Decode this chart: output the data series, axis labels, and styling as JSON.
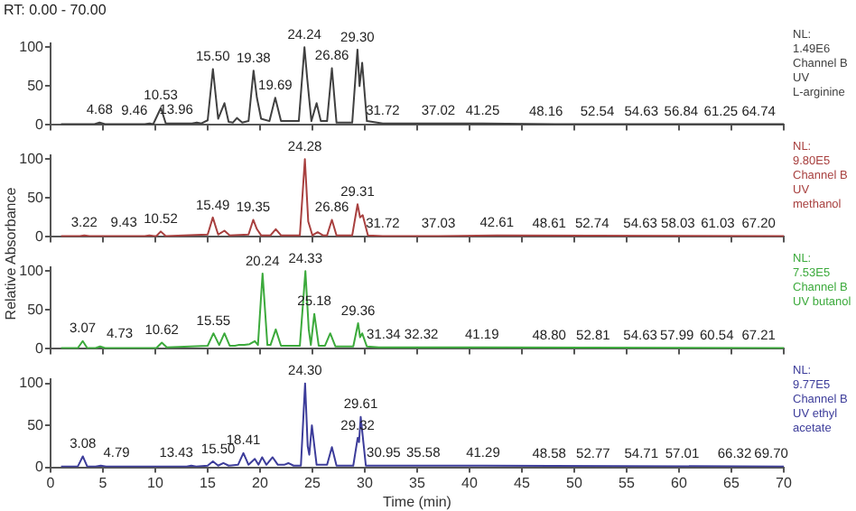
{
  "chart_data": [
    {
      "type": "line",
      "title": "RT: 0.00 - 70.00",
      "xlim": [
        0,
        70
      ],
      "xticks": [
        0,
        5,
        10,
        15,
        20,
        25,
        30,
        35,
        40,
        45,
        50,
        55,
        60,
        65,
        70
      ],
      "ylim": [
        0,
        105
      ],
      "yticks": [
        0,
        50,
        100
      ],
      "tick_labels": "y",
      "series": [
        {
          "color": "#404040",
          "x": [
            1,
            4.2,
            4.68,
            5.2,
            9.0,
            9.46,
            9.8,
            10.53,
            11.0,
            13.5,
            13.96,
            14.4,
            15.0,
            15.5,
            16.0,
            16.6,
            17.0,
            17.4,
            17.8,
            18.3,
            18.9,
            19.38,
            19.7,
            20.1,
            20.9,
            21.45,
            22.0,
            23.7,
            24.24,
            24.5,
            24.9,
            25.4,
            25.8,
            26.4,
            26.86,
            27.3,
            28.8,
            29.3,
            29.5,
            29.75,
            30.2,
            31.72,
            37.02,
            41.25,
            48.16,
            70
          ],
          "values": [
            1,
            1,
            3,
            1,
            1,
            2,
            1,
            22,
            2,
            2,
            3,
            2,
            6,
            72,
            8,
            28,
            4,
            3,
            9,
            3,
            5,
            70,
            35,
            8,
            5,
            35,
            5,
            5,
            100,
            60,
            5,
            28,
            5,
            5,
            73,
            3,
            3,
            97,
            50,
            80,
            5,
            2,
            2,
            2,
            1,
            1
          ]
        }
      ],
      "annotations": [
        {
          "text": "4.68",
          "x": 4.68,
          "y": 3
        },
        {
          "text": "9.46",
          "x": 8.0,
          "y": 2
        },
        {
          "text": "10.53",
          "x": 10.53,
          "y": 22
        },
        {
          "text": "13.96",
          "x": 12.0,
          "y": 3
        },
        {
          "text": "15.50",
          "x": 15.5,
          "y": 72
        },
        {
          "text": "19.38",
          "x": 19.38,
          "y": 70
        },
        {
          "text": "19.69",
          "x": 21.45,
          "y": 35
        },
        {
          "text": "24.24",
          "x": 24.24,
          "y": 100
        },
        {
          "text": "26.86",
          "x": 26.86,
          "y": 73
        },
        {
          "text": "29.30",
          "x": 29.3,
          "y": 97
        },
        {
          "text": "31.72",
          "x": 31.72,
          "y": 2
        },
        {
          "text": "37.02",
          "x": 37.02,
          "y": 2
        },
        {
          "text": "41.25",
          "x": 41.25,
          "y": 2
        },
        {
          "text": "48.16",
          "x": 47.3,
          "y": 1
        },
        {
          "text": "52.54",
          "x": 52.2,
          "y": 1
        },
        {
          "text": "54.63",
          "x": 56.4,
          "y": 1
        },
        {
          "text": "56.84",
          "x": 60.2,
          "y": 1
        },
        {
          "text": "61.25",
          "x": 64.0,
          "y": 1
        },
        {
          "text": "64.74",
          "x": 67.6,
          "y": 1
        },
        "NL:",
        "1.49E6",
        "Channel B",
        "UV",
        "L-arginine"
      ]
    },
    {
      "type": "line",
      "ylabel": "Relative Absorbance",
      "xlim": [
        0,
        70
      ],
      "xticks": [
        0,
        5,
        10,
        15,
        20,
        25,
        30,
        35,
        40,
        45,
        50,
        55,
        60,
        65,
        70
      ],
      "ylim": [
        0,
        105
      ],
      "yticks": [
        0,
        50,
        100
      ],
      "tick_labels": "y",
      "series": [
        {
          "color": "#a8403f",
          "x": [
            1,
            2.8,
            3.22,
            3.7,
            9.0,
            9.43,
            9.9,
            10.1,
            10.52,
            11.0,
            15.0,
            15.49,
            16.0,
            16.6,
            17.1,
            18.9,
            19.35,
            19.7,
            20.1,
            21.0,
            21.5,
            22.0,
            23.8,
            24.28,
            24.6,
            25.0,
            25.5,
            26.0,
            26.4,
            26.86,
            27.3,
            28.8,
            29.31,
            29.55,
            29.8,
            30.3,
            31.72,
            37.03,
            42.61,
            70
          ],
          "values": [
            1,
            1,
            2,
            1,
            1,
            2,
            1,
            1,
            7,
            1,
            3,
            25,
            3,
            8,
            2,
            3,
            22,
            10,
            2,
            2,
            10,
            2,
            2,
            100,
            20,
            2,
            6,
            2,
            2,
            22,
            2,
            2,
            42,
            25,
            28,
            2,
            1,
            1,
            2,
            1
          ]
        }
      ],
      "annotations": [
        {
          "text": "3.22",
          "x": 3.22,
          "y": 2
        },
        {
          "text": "9.43",
          "x": 7.0,
          "y": 2
        },
        {
          "text": "10.52",
          "x": 10.52,
          "y": 7
        },
        {
          "text": "15.49",
          "x": 15.49,
          "y": 25
        },
        {
          "text": "19.35",
          "x": 19.35,
          "y": 22
        },
        {
          "text": "24.28",
          "x": 24.28,
          "y": 100
        },
        {
          "text": "26.86",
          "x": 26.86,
          "y": 22
        },
        {
          "text": "29.31",
          "x": 29.31,
          "y": 42
        },
        {
          "text": "31.72",
          "x": 31.72,
          "y": 1
        },
        {
          "text": "37.03",
          "x": 37.03,
          "y": 1
        },
        {
          "text": "42.61",
          "x": 42.61,
          "y": 2
        },
        {
          "text": "48.61",
          "x": 47.6,
          "y": 1
        },
        {
          "text": "52.74",
          "x": 51.7,
          "y": 1
        },
        {
          "text": "54.63",
          "x": 56.3,
          "y": 1
        },
        {
          "text": "58.03",
          "x": 59.9,
          "y": 1
        },
        {
          "text": "61.03",
          "x": 63.7,
          "y": 1
        },
        {
          "text": "67.20",
          "x": 67.6,
          "y": 1
        },
        "NL:",
        "9.80E5",
        "Channel B",
        "UV methanol"
      ]
    },
    {
      "type": "line",
      "xlim": [
        0,
        70
      ],
      "xticks": [
        0,
        5,
        10,
        15,
        20,
        25,
        30,
        35,
        40,
        45,
        50,
        55,
        60,
        65,
        70
      ],
      "ylim": [
        0,
        105
      ],
      "yticks": [
        0,
        50,
        100
      ],
      "tick_labels": "y",
      "series": [
        {
          "color": "#3caa3c",
          "x": [
            1,
            2.6,
            3.07,
            3.5,
            4.3,
            4.73,
            5.2,
            10.1,
            10.62,
            11.1,
            15.0,
            15.55,
            16.1,
            16.6,
            17.1,
            17.6,
            18.0,
            18.5,
            19.0,
            19.5,
            19.8,
            20.24,
            20.7,
            21.0,
            21.5,
            22.0,
            23.8,
            24.33,
            24.65,
            24.85,
            25.18,
            25.6,
            26.2,
            26.7,
            27.2,
            28.9,
            29.36,
            29.55,
            29.75,
            30.2,
            31.34,
            32.32,
            41.19,
            70
          ],
          "values": [
            1,
            1,
            10,
            1,
            1,
            3,
            1,
            1,
            8,
            2,
            4,
            20,
            5,
            20,
            4,
            4,
            5,
            5,
            6,
            10,
            5,
            97,
            5,
            5,
            25,
            4,
            4,
            100,
            25,
            5,
            45,
            4,
            4,
            20,
            3,
            3,
            33,
            15,
            20,
            3,
            2,
            2,
            2,
            1
          ]
        }
      ],
      "annotations": [
        {
          "text": "3.07",
          "x": 3.07,
          "y": 10
        },
        {
          "text": "4.73",
          "x": 6.6,
          "y": 3
        },
        {
          "text": "10.62",
          "x": 10.62,
          "y": 8
        },
        {
          "text": "15.55",
          "x": 15.55,
          "y": 20
        },
        {
          "text": "20.24",
          "x": 20.24,
          "y": 97
        },
        {
          "text": "24.33",
          "x": 24.33,
          "y": 100
        },
        {
          "text": "25.18",
          "x": 25.18,
          "y": 45
        },
        {
          "text": "29.36",
          "x": 29.36,
          "y": 33
        },
        {
          "text": "31.34",
          "x": 31.8,
          "y": 2
        },
        {
          "text": "32.32",
          "x": 35.4,
          "y": 2
        },
        {
          "text": "41.19",
          "x": 41.19,
          "y": 2
        },
        {
          "text": "48.80",
          "x": 47.6,
          "y": 1
        },
        {
          "text": "52.81",
          "x": 51.8,
          "y": 1
        },
        {
          "text": "54.63",
          "x": 56.3,
          "y": 1
        },
        {
          "text": "57.99",
          "x": 59.8,
          "y": 1
        },
        {
          "text": "60.54",
          "x": 63.6,
          "y": 1
        },
        {
          "text": "67.21",
          "x": 67.6,
          "y": 1
        },
        "NL:",
        "7.53E5",
        "Channel B",
        "UV butanol"
      ]
    },
    {
      "type": "line",
      "xlabel": "Time (min)",
      "xlim": [
        0,
        70
      ],
      "xticks": [
        0,
        5,
        10,
        15,
        20,
        25,
        30,
        35,
        40,
        45,
        50,
        55,
        60,
        65,
        70
      ],
      "ylim": [
        0,
        105
      ],
      "yticks": [
        0,
        50,
        100
      ],
      "series": [
        {
          "color": "#3c3c9a",
          "x": [
            1,
            2.6,
            3.08,
            3.5,
            4.3,
            4.79,
            5.3,
            13.0,
            13.43,
            13.9,
            15.0,
            15.5,
            16.0,
            16.5,
            17.0,
            17.9,
            18.41,
            18.9,
            19.5,
            19.85,
            20.2,
            20.6,
            21.2,
            21.7,
            22.3,
            22.7,
            23.2,
            23.9,
            24.3,
            24.55,
            24.7,
            24.95,
            25.4,
            26.4,
            26.86,
            27.3,
            28.9,
            29.32,
            29.45,
            29.61,
            30.1,
            30.95,
            35.58,
            41.29,
            70
          ],
          "values": [
            1,
            1,
            13,
            1,
            1,
            2,
            1,
            1,
            2,
            1,
            2,
            7,
            2,
            5,
            2,
            3,
            17,
            3,
            10,
            3,
            12,
            3,
            12,
            3,
            3,
            5,
            2,
            2,
            100,
            25,
            15,
            50,
            3,
            3,
            24,
            2,
            2,
            35,
            30,
            60,
            2,
            2,
            2,
            2,
            1
          ]
        }
      ],
      "annotations": [
        {
          "text": "3.08",
          "x": 3.08,
          "y": 13
        },
        {
          "text": "4.79",
          "x": 6.3,
          "y": 2
        },
        {
          "text": "13.43",
          "x": 12.0,
          "y": 2
        },
        {
          "text": "15.50",
          "x": 16.0,
          "y": 7
        },
        {
          "text": "18.41",
          "x": 18.41,
          "y": 17
        },
        {
          "text": "24.30",
          "x": 24.3,
          "y": 100
        },
        {
          "text": "29.32",
          "x": 29.32,
          "y": 35
        },
        {
          "text": "29.61",
          "x": 29.61,
          "y": 60
        },
        {
          "text": "30.95",
          "x": 31.8,
          "y": 2
        },
        {
          "text": "35.58",
          "x": 35.58,
          "y": 2
        },
        {
          "text": "41.29",
          "x": 41.29,
          "y": 2
        },
        {
          "text": "48.58",
          "x": 47.6,
          "y": 1
        },
        {
          "text": "52.77",
          "x": 51.8,
          "y": 1
        },
        {
          "text": "54.71",
          "x": 56.4,
          "y": 1
        },
        {
          "text": "57.01",
          "x": 60.3,
          "y": 1
        },
        {
          "text": "66.32",
          "x": 65.3,
          "y": 1
        },
        {
          "text": "69.70",
          "x": 68.8,
          "y": 1
        },
        "NL:",
        "9.77E5",
        "Channel B",
        "UV ethyl acetate"
      ]
    }
  ]
}
